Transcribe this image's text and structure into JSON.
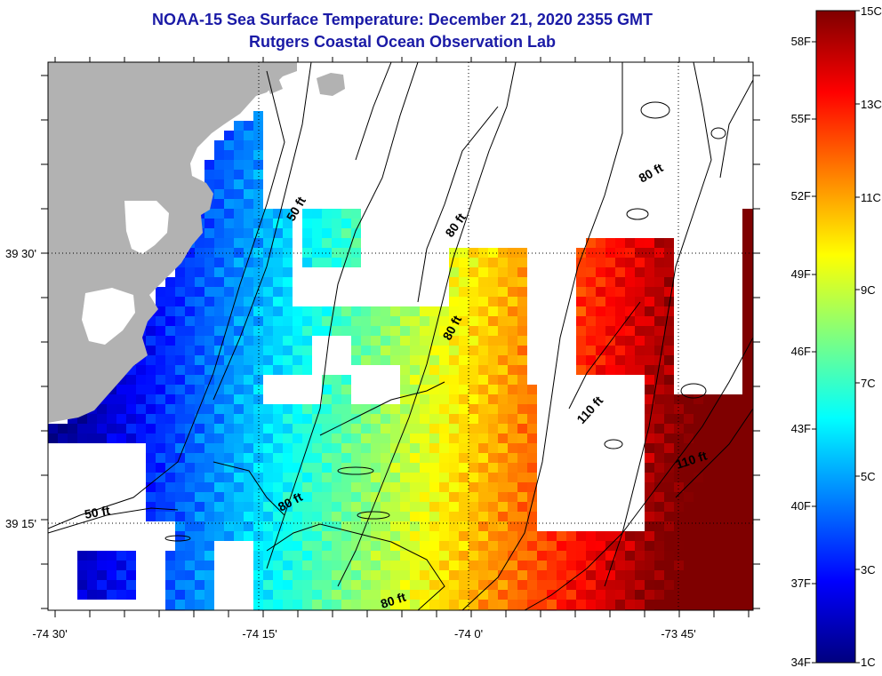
{
  "title_line1": "NOAA-15 Sea Surface Temperature:  December 21, 2020 2355 GMT",
  "title_line2": "Rutgers Coastal Ocean Observation Lab",
  "map": {
    "x_ticks": [
      "-74 30'",
      "-74 15'",
      "-74 0'",
      "-73 45'"
    ],
    "y_ticks": [
      "39 30'",
      "39 15'"
    ],
    "contour_labels": [
      "50 ft",
      "80 ft",
      "80 ft",
      "80 ft",
      "110 ft",
      "110 ft",
      "50 ft",
      "80 ft",
      "80 ft"
    ]
  },
  "colorbar": {
    "celsius_labels": [
      "15C",
      "13C",
      "11C",
      "9C",
      "7C",
      "5C",
      "3C",
      "1C"
    ],
    "fahrenheit_labels": [
      "58F",
      "55F",
      "52F",
      "49F",
      "46F",
      "43F",
      "40F",
      "37F",
      "34F"
    ],
    "range_celsius": [
      1,
      15
    ],
    "colors": [
      "#00007f",
      "#0000ff",
      "#007fff",
      "#00ffff",
      "#7fff7f",
      "#ffff00",
      "#ff7f00",
      "#ff0000",
      "#7f0000"
    ]
  }
}
